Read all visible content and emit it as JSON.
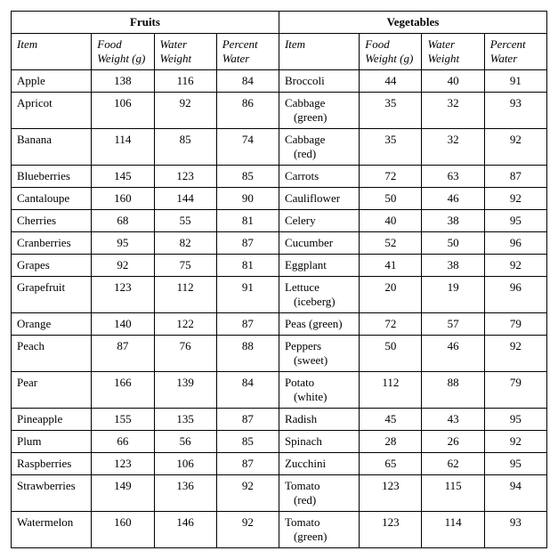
{
  "table": {
    "type": "table",
    "background_color": "#ffffff",
    "border_color": "#000000",
    "font_family": "Times New Roman",
    "base_fontsize": 13,
    "section_headers": {
      "left": "Fruits",
      "right": "Vegetables"
    },
    "column_labels": {
      "item": "Item",
      "food_weight": "Food Weight (g)",
      "water_weight": "Water Weight",
      "percent_water": "Percent Water"
    },
    "fruits": [
      {
        "item": "Apple",
        "food_weight": 138,
        "water_weight": 116,
        "percent_water": 84
      },
      {
        "item": "Apricot",
        "food_weight": 106,
        "water_weight": 92,
        "percent_water": 86
      },
      {
        "item": "Banana",
        "food_weight": 114,
        "water_weight": 85,
        "percent_water": 74
      },
      {
        "item": "Blueberries",
        "food_weight": 145,
        "water_weight": 123,
        "percent_water": 85
      },
      {
        "item": "Cantaloupe",
        "food_weight": 160,
        "water_weight": 144,
        "percent_water": 90
      },
      {
        "item": "Cherries",
        "food_weight": 68,
        "water_weight": 55,
        "percent_water": 81
      },
      {
        "item": "Cranberries",
        "food_weight": 95,
        "water_weight": 82,
        "percent_water": 87
      },
      {
        "item": "Grapes",
        "food_weight": 92,
        "water_weight": 75,
        "percent_water": 81
      },
      {
        "item": "Grapefruit",
        "food_weight": 123,
        "water_weight": 112,
        "percent_water": 91
      },
      {
        "item": "Orange",
        "food_weight": 140,
        "water_weight": 122,
        "percent_water": 87
      },
      {
        "item": "Peach",
        "food_weight": 87,
        "water_weight": 76,
        "percent_water": 88
      },
      {
        "item": "Pear",
        "food_weight": 166,
        "water_weight": 139,
        "percent_water": 84
      },
      {
        "item": "Pineapple",
        "food_weight": 155,
        "water_weight": 135,
        "percent_water": 87
      },
      {
        "item": "Plum",
        "food_weight": 66,
        "water_weight": 56,
        "percent_water": 85
      },
      {
        "item": "Raspberries",
        "food_weight": 123,
        "water_weight": 106,
        "percent_water": 87
      },
      {
        "item": "Strawberries",
        "food_weight": 149,
        "water_weight": 136,
        "percent_water": 92
      },
      {
        "item": "Watermelon",
        "food_weight": 160,
        "water_weight": 146,
        "percent_water": 92
      }
    ],
    "vegetables": [
      {
        "item": "Broccoli",
        "sub": "",
        "food_weight": 44,
        "water_weight": 40,
        "percent_water": 91
      },
      {
        "item": "Cabbage",
        "sub": "(green)",
        "food_weight": 35,
        "water_weight": 32,
        "percent_water": 93
      },
      {
        "item": "Cabbage",
        "sub": "(red)",
        "food_weight": 35,
        "water_weight": 32,
        "percent_water": 92
      },
      {
        "item": "Carrots",
        "sub": "",
        "food_weight": 72,
        "water_weight": 63,
        "percent_water": 87
      },
      {
        "item": "Cauliflower",
        "sub": "",
        "food_weight": 50,
        "water_weight": 46,
        "percent_water": 92
      },
      {
        "item": "Celery",
        "sub": "",
        "food_weight": 40,
        "water_weight": 38,
        "percent_water": 95
      },
      {
        "item": "Cucumber",
        "sub": "",
        "food_weight": 52,
        "water_weight": 50,
        "percent_water": 96
      },
      {
        "item": "Eggplant",
        "sub": "",
        "food_weight": 41,
        "water_weight": 38,
        "percent_water": 92
      },
      {
        "item": "Lettuce",
        "sub": "(iceberg)",
        "food_weight": 20,
        "water_weight": 19,
        "percent_water": 96
      },
      {
        "item": "Peas (green)",
        "sub": "",
        "food_weight": 72,
        "water_weight": 57,
        "percent_water": 79
      },
      {
        "item": "Peppers",
        "sub": "(sweet)",
        "food_weight": 50,
        "water_weight": 46,
        "percent_water": 92
      },
      {
        "item": "Potato",
        "sub": "(white)",
        "food_weight": 112,
        "water_weight": 88,
        "percent_water": 79
      },
      {
        "item": "Radish",
        "sub": "",
        "food_weight": 45,
        "water_weight": 43,
        "percent_water": 95
      },
      {
        "item": "Spinach",
        "sub": "",
        "food_weight": 28,
        "water_weight": 26,
        "percent_water": 92
      },
      {
        "item": "Zucchini",
        "sub": "",
        "food_weight": 65,
        "water_weight": 62,
        "percent_water": 95
      },
      {
        "item": "Tomato",
        "sub": "(red)",
        "food_weight": 123,
        "water_weight": 115,
        "percent_water": 94
      },
      {
        "item": "Tomato",
        "sub": "(green)",
        "food_weight": 123,
        "water_weight": 114,
        "percent_water": 93
      }
    ]
  }
}
